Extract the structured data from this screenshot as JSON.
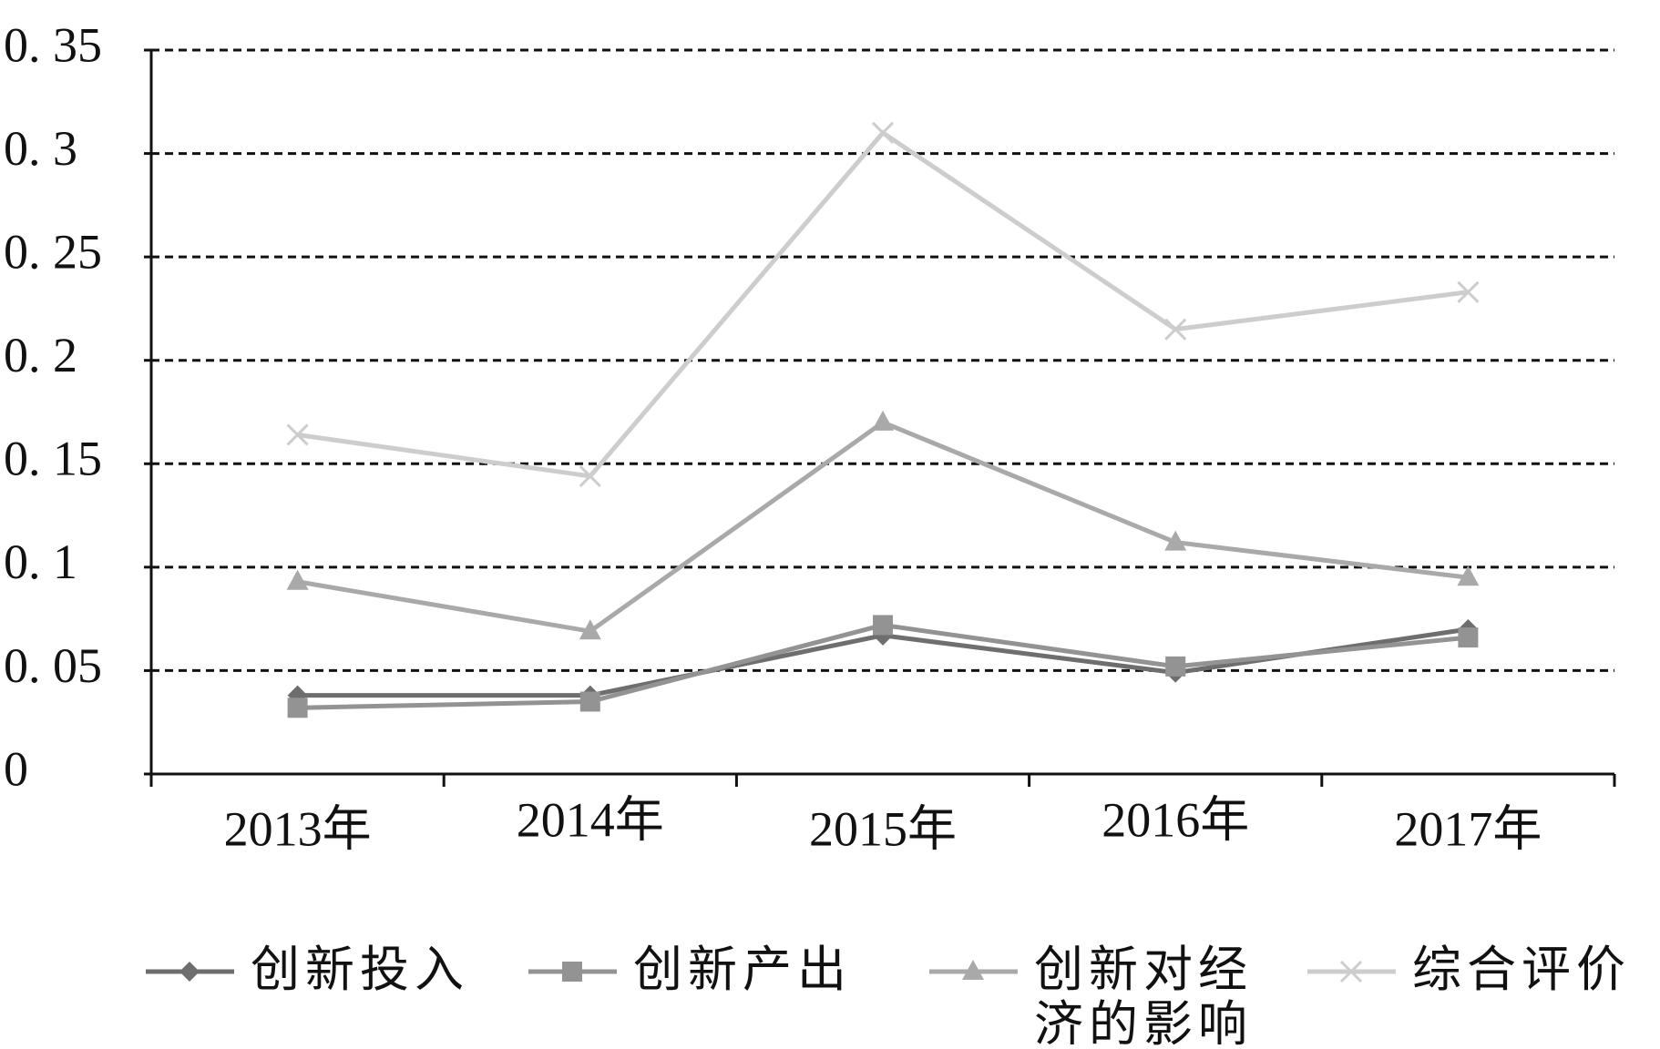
{
  "chart_data": {
    "type": "line",
    "categories": [
      "2013年",
      "2014年",
      "2015年",
      "2016年",
      "2017年"
    ],
    "series": [
      {
        "name": "创新投入",
        "color": "#6e6e6e",
        "marker": "diamond",
        "values": [
          0.038,
          0.038,
          0.067,
          0.049,
          0.07
        ]
      },
      {
        "name": "创新产出",
        "color": "#939393",
        "marker": "square",
        "values": [
          0.032,
          0.035,
          0.072,
          0.052,
          0.066
        ]
      },
      {
        "name": "创新对经济的影响",
        "color": "#a9a9a9",
        "marker": "triangle",
        "values": [
          0.093,
          0.069,
          0.17,
          0.112,
          0.095
        ]
      },
      {
        "name": "综合评价",
        "color": "#cdcdcd",
        "marker": "x",
        "values": [
          0.164,
          0.144,
          0.31,
          0.215,
          0.233
        ]
      }
    ],
    "ylim": [
      0,
      0.35
    ],
    "yticks": [
      {
        "value": 0,
        "label": "0"
      },
      {
        "value": 0.05,
        "label": "0. 05"
      },
      {
        "value": 0.1,
        "label": "0. 1"
      },
      {
        "value": 0.15,
        "label": "0. 15"
      },
      {
        "value": 0.2,
        "label": "0. 2"
      },
      {
        "value": 0.25,
        "label": "0. 25"
      },
      {
        "value": 0.3,
        "label": "0. 3"
      },
      {
        "value": 0.35,
        "label": "0. 35"
      }
    ],
    "grid": true
  }
}
